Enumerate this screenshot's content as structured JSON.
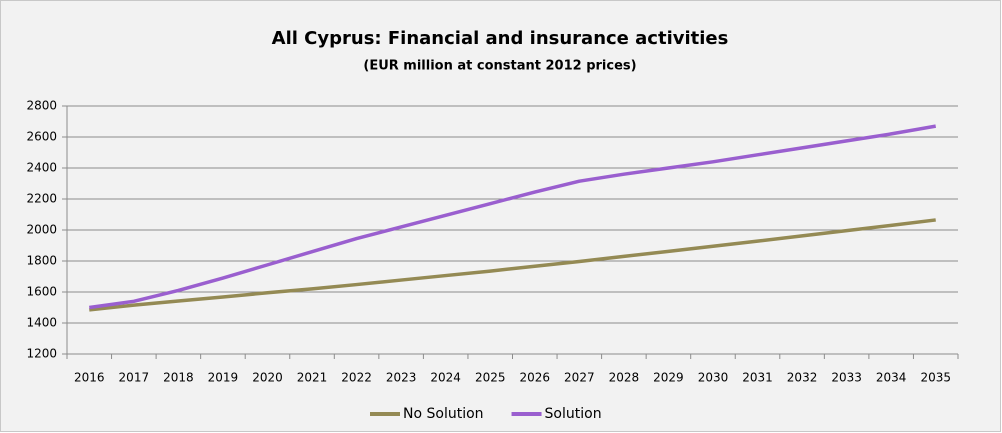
{
  "chart_data": {
    "type": "line",
    "title": "All Cyprus: Financial and insurance activities",
    "subtitle": "(EUR million at constant 2012 prices)",
    "categories": [
      "2016",
      "2017",
      "2018",
      "2019",
      "2020",
      "2021",
      "2022",
      "2023",
      "2024",
      "2025",
      "2026",
      "2027",
      "2028",
      "2029",
      "2030",
      "2031",
      "2032",
      "2033",
      "2034",
      "2035"
    ],
    "series": [
      {
        "name": "No Solution",
        "color": "#948a54",
        "values": [
          1485,
          1515,
          1542,
          1568,
          1595,
          1620,
          1648,
          1677,
          1706,
          1735,
          1766,
          1797,
          1830,
          1862,
          1895,
          1928,
          1962,
          1996,
          2030,
          2065
        ]
      },
      {
        "name": "Solution",
        "color": "#9a5fcf",
        "values": [
          1500,
          1540,
          1610,
          1690,
          1775,
          1860,
          1945,
          2020,
          2095,
          2170,
          2245,
          2315,
          2360,
          2400,
          2440,
          2485,
          2530,
          2575,
          2620,
          2670
        ]
      }
    ],
    "ylim": [
      1200,
      2800
    ],
    "yticks": [
      1200,
      1400,
      1600,
      1800,
      2000,
      2200,
      2400,
      2600,
      2800
    ],
    "grid": true,
    "legend": "bottom"
  }
}
